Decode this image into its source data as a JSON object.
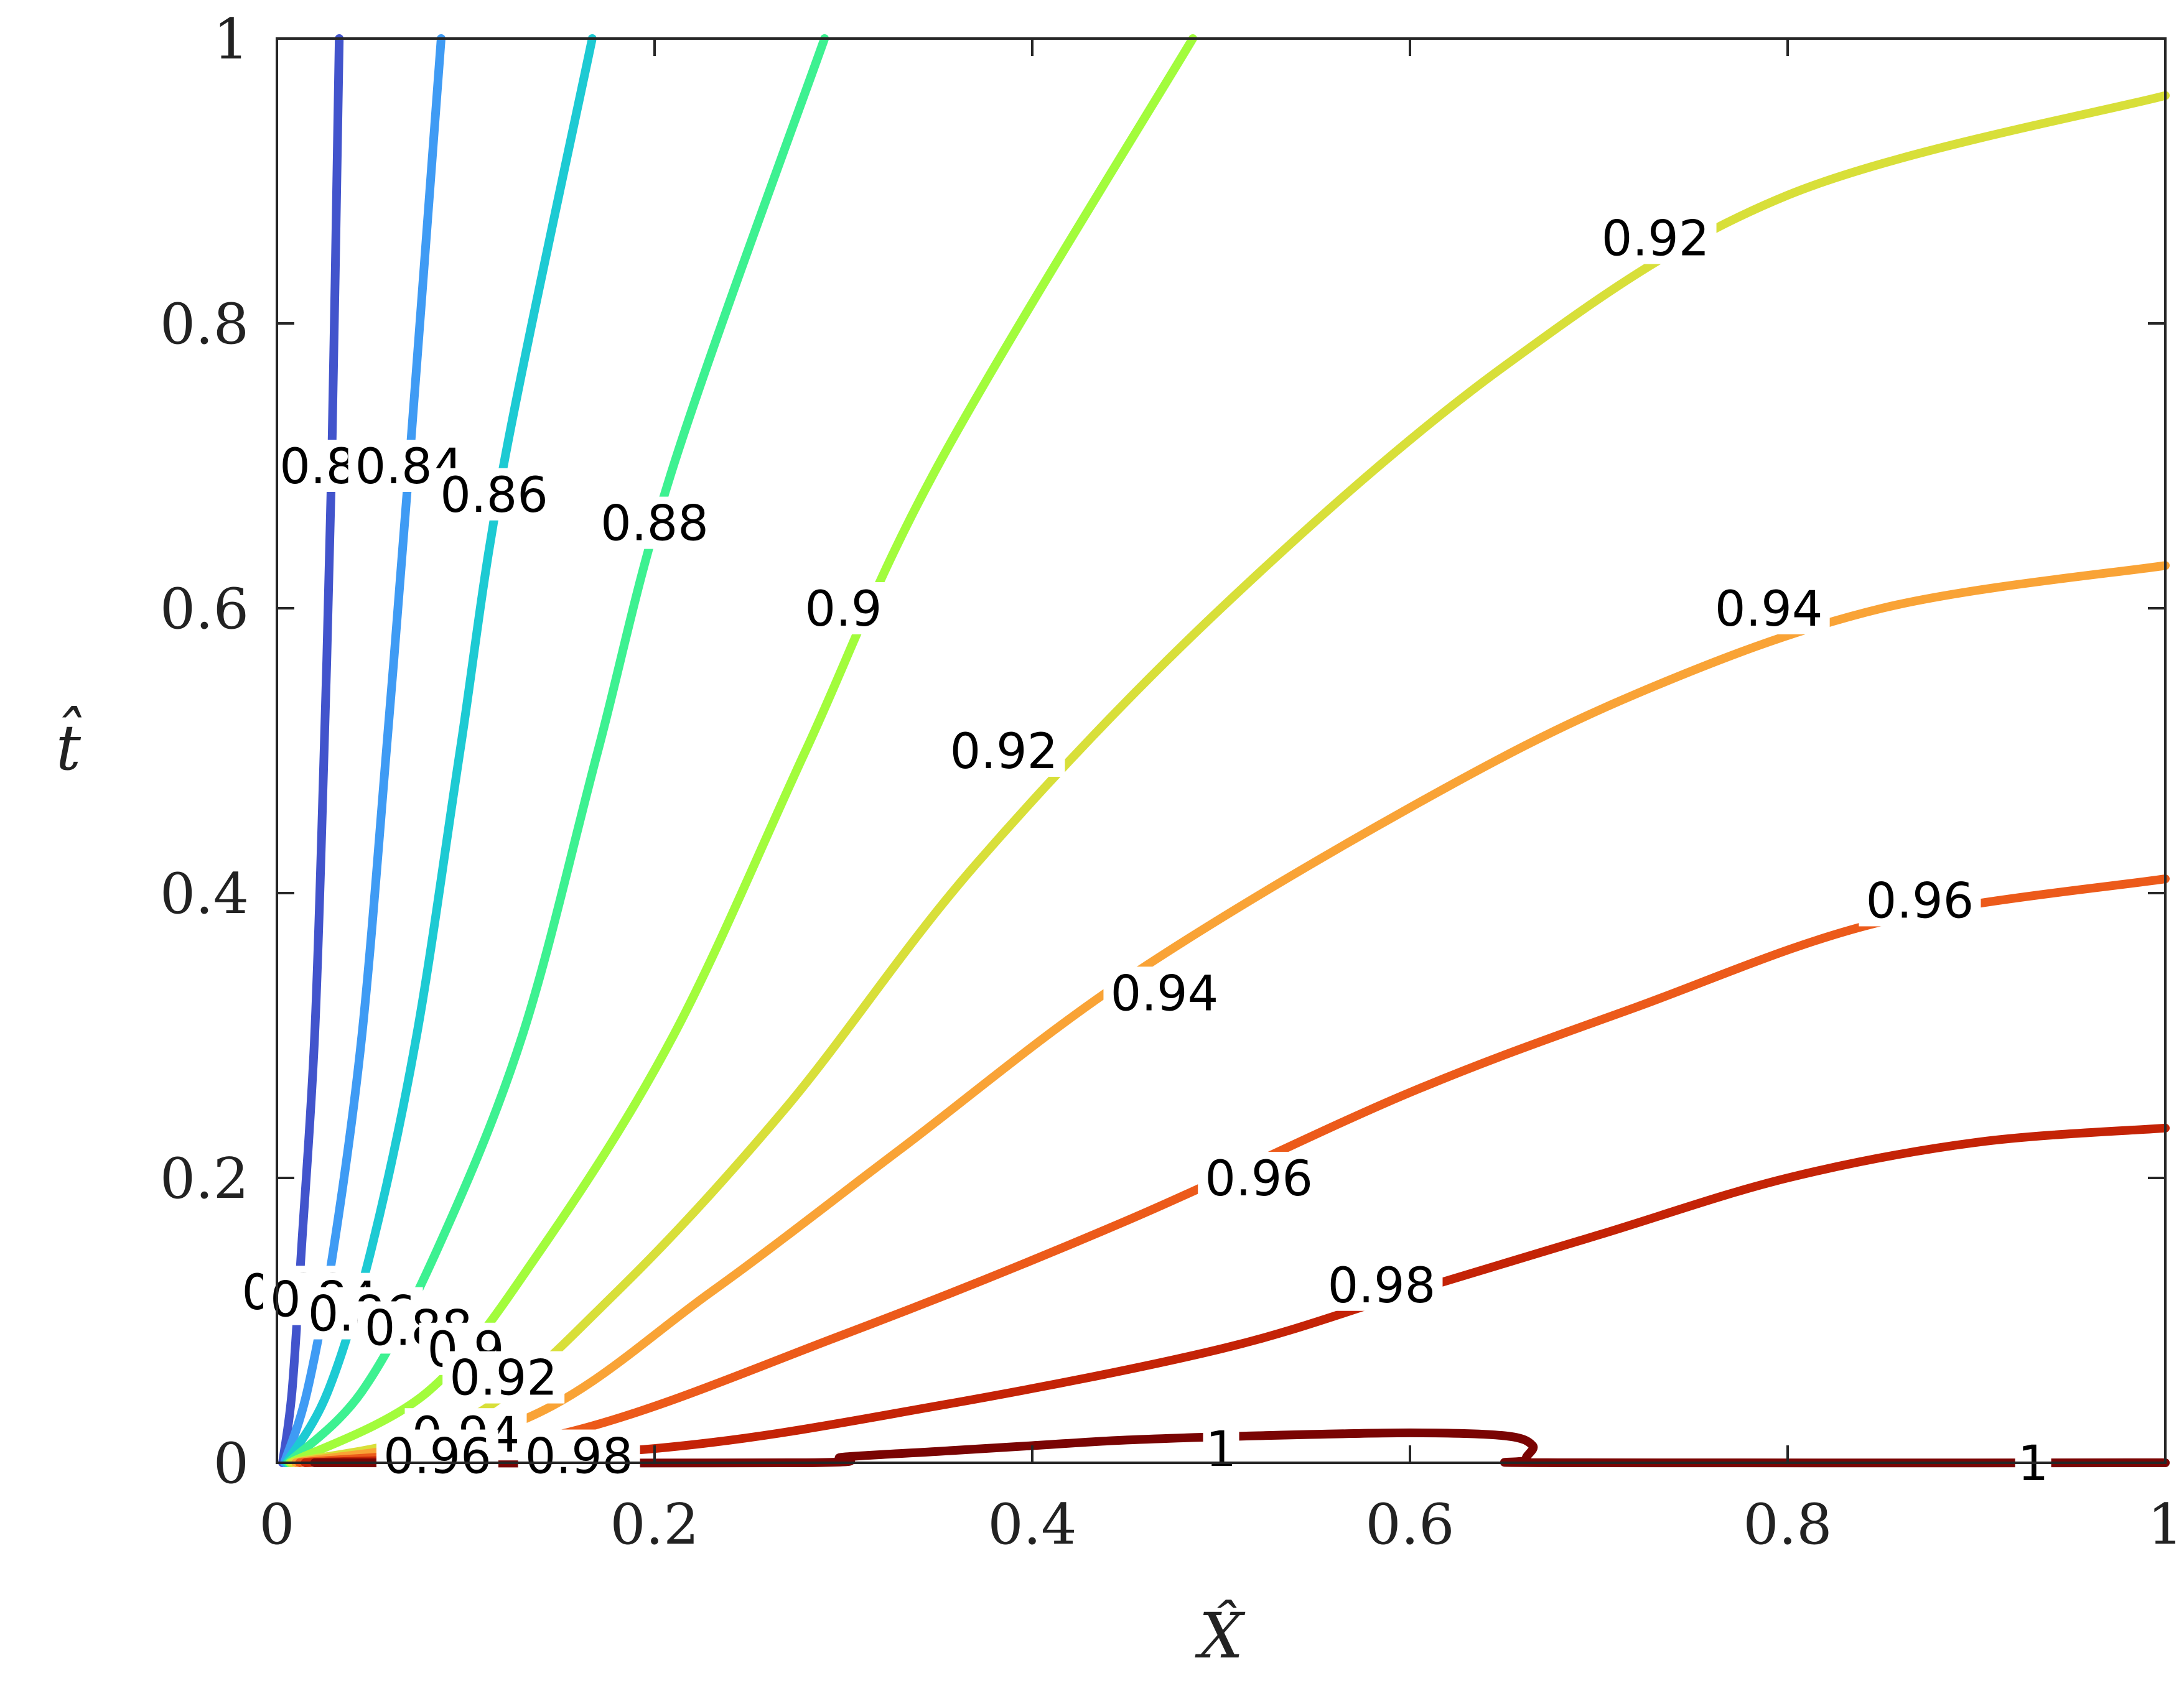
{
  "chart_data": {
    "type": "contour",
    "xlabel": "X̂",
    "ylabel": "t̂",
    "xlim": [
      0,
      1
    ],
    "ylim": [
      0,
      1
    ],
    "x_ticks": [
      {
        "value": 0,
        "label": "0"
      },
      {
        "value": 0.2,
        "label": "0.2"
      },
      {
        "value": 0.4,
        "label": "0.4"
      },
      {
        "value": 0.6,
        "label": "0.6"
      },
      {
        "value": 0.8,
        "label": "0.8"
      },
      {
        "value": 1,
        "label": "1"
      }
    ],
    "y_ticks": [
      {
        "value": 0,
        "label": "0"
      },
      {
        "value": 0.2,
        "label": "0.2"
      },
      {
        "value": 0.4,
        "label": "0.4"
      },
      {
        "value": 0.6,
        "label": "0.6"
      },
      {
        "value": 0.8,
        "label": "0.8"
      },
      {
        "value": 1,
        "label": "1"
      }
    ],
    "grid": false,
    "colormap": "turbo",
    "levels": [
      {
        "level": "0.82",
        "color": "#4254cc",
        "points": [
          [
            0.003,
            0
          ],
          [
            0.008,
            0.05
          ],
          [
            0.013,
            0.15
          ],
          [
            0.02,
            0.3
          ],
          [
            0.025,
            0.5
          ],
          [
            0.029,
            0.7
          ],
          [
            0.033,
            1.0
          ]
        ]
      },
      {
        "level": "0.84",
        "color": "#3f9bf4",
        "points": [
          [
            0.004,
            0
          ],
          [
            0.016,
            0.05
          ],
          [
            0.03,
            0.15
          ],
          [
            0.045,
            0.3
          ],
          [
            0.058,
            0.5
          ],
          [
            0.07,
            0.7
          ],
          [
            0.087,
            1.0
          ]
        ]
      },
      {
        "level": "0.86",
        "color": "#1dcad3",
        "points": [
          [
            0.005,
            0
          ],
          [
            0.027,
            0.05
          ],
          [
            0.05,
            0.15
          ],
          [
            0.074,
            0.3
          ],
          [
            0.097,
            0.5
          ],
          [
            0.12,
            0.7
          ],
          [
            0.167,
            1.0
          ]
        ]
      },
      {
        "level": "0.88",
        "color": "#3df191",
        "points": [
          [
            0.006,
            0
          ],
          [
            0.045,
            0.05
          ],
          [
            0.085,
            0.15
          ],
          [
            0.13,
            0.3
          ],
          [
            0.17,
            0.5
          ],
          [
            0.21,
            0.7
          ],
          [
            0.29,
            1.0
          ]
        ]
      },
      {
        "level": "0.9",
        "color": "#a2fc3c",
        "points": [
          [
            0.007,
            0
          ],
          [
            0.08,
            0.05
          ],
          [
            0.14,
            0.15
          ],
          [
            0.21,
            0.3
          ],
          [
            0.28,
            0.5
          ],
          [
            0.35,
            0.7
          ],
          [
            0.485,
            1.0
          ]
        ]
      },
      {
        "level": "0.92",
        "color": "#d8df39",
        "points": [
          [
            0.008,
            0
          ],
          [
            0.1,
            0.03
          ],
          [
            0.18,
            0.12
          ],
          [
            0.27,
            0.25
          ],
          [
            0.37,
            0.42
          ],
          [
            0.5,
            0.6
          ],
          [
            0.65,
            0.77
          ],
          [
            0.8,
            0.89
          ],
          [
            1.0,
            0.96
          ]
        ]
      },
      {
        "level": "0.94",
        "color": "#f9a336",
        "points": [
          [
            0.01,
            0
          ],
          [
            0.13,
            0.03
          ],
          [
            0.23,
            0.12
          ],
          [
            0.33,
            0.22
          ],
          [
            0.45,
            0.34
          ],
          [
            0.6,
            0.46
          ],
          [
            0.72,
            0.54
          ],
          [
            0.85,
            0.6
          ],
          [
            1.0,
            0.63
          ]
        ]
      },
      {
        "level": "0.96",
        "color": "#ec5a1a",
        "points": [
          [
            0.012,
            0
          ],
          [
            0.15,
            0.02
          ],
          [
            0.3,
            0.09
          ],
          [
            0.45,
            0.17
          ],
          [
            0.6,
            0.26
          ],
          [
            0.72,
            0.32
          ],
          [
            0.85,
            0.38
          ],
          [
            1.0,
            0.41
          ]
        ]
      },
      {
        "level": "0.98",
        "color": "#c42306",
        "points": [
          [
            0.015,
            0
          ],
          [
            0.2,
            0.01
          ],
          [
            0.35,
            0.04
          ],
          [
            0.5,
            0.08
          ],
          [
            0.6,
            0.12
          ],
          [
            0.7,
            0.16
          ],
          [
            0.8,
            0.2
          ],
          [
            0.9,
            0.225
          ],
          [
            1.0,
            0.235
          ]
        ]
      },
      {
        "level": "1",
        "color": "#7a0403",
        "points": [
          [
            0.02,
            0
          ],
          [
            0.28,
            0
          ],
          [
            0.3,
            0.004
          ],
          [
            0.35,
            0.008
          ],
          [
            0.4,
            0.012
          ],
          [
            0.45,
            0.016
          ],
          [
            0.52,
            0.019
          ],
          [
            0.6,
            0.021
          ],
          [
            0.65,
            0.019
          ],
          [
            0.665,
            0.012
          ],
          [
            0.662,
            0.002
          ],
          [
            0.68,
            0
          ],
          [
            1.0,
            0
          ]
        ]
      }
    ],
    "contour_labels": [
      {
        "text": "0.82",
        "x": 0.03,
        "y": 0.7
      },
      {
        "text": "0.84",
        "x": 0.07,
        "y": 0.7
      },
      {
        "text": "0.86",
        "x": 0.115,
        "y": 0.68
      },
      {
        "text": "0.88",
        "x": 0.2,
        "y": 0.66
      },
      {
        "text": "0.9",
        "x": 0.3,
        "y": 0.6
      },
      {
        "text": "0.92",
        "x": 0.385,
        "y": 0.5
      },
      {
        "text": "0.94",
        "x": 0.47,
        "y": 0.33
      },
      {
        "text": "0.96",
        "x": 0.52,
        "y": 0.2
      },
      {
        "text": "0.98",
        "x": 0.585,
        "y": 0.125
      },
      {
        "text": "0.92",
        "x": 0.73,
        "y": 0.86
      },
      {
        "text": "0.94",
        "x": 0.79,
        "y": 0.6
      },
      {
        "text": "0.96",
        "x": 0.87,
        "y": 0.395
      },
      {
        "text": "1",
        "x": 0.5,
        "y": 0.01
      },
      {
        "text": "1",
        "x": 0.93,
        "y": 0
      },
      {
        "text": "0.82",
        "x": 0.01,
        "y": 0.12
      },
      {
        "text": "0.84",
        "x": 0.025,
        "y": 0.115
      },
      {
        "text": "0.86",
        "x": 0.045,
        "y": 0.105
      },
      {
        "text": "0.88",
        "x": 0.075,
        "y": 0.095
      },
      {
        "text": "0.9",
        "x": 0.1,
        "y": 0.08
      },
      {
        "text": "0.92",
        "x": 0.12,
        "y": 0.06
      },
      {
        "text": "0.94",
        "x": 0.1,
        "y": 0.02
      },
      {
        "text": "0.96",
        "x": 0.085,
        "y": 0.005
      },
      {
        "text": "0.98",
        "x": 0.16,
        "y": 0.005
      }
    ]
  }
}
